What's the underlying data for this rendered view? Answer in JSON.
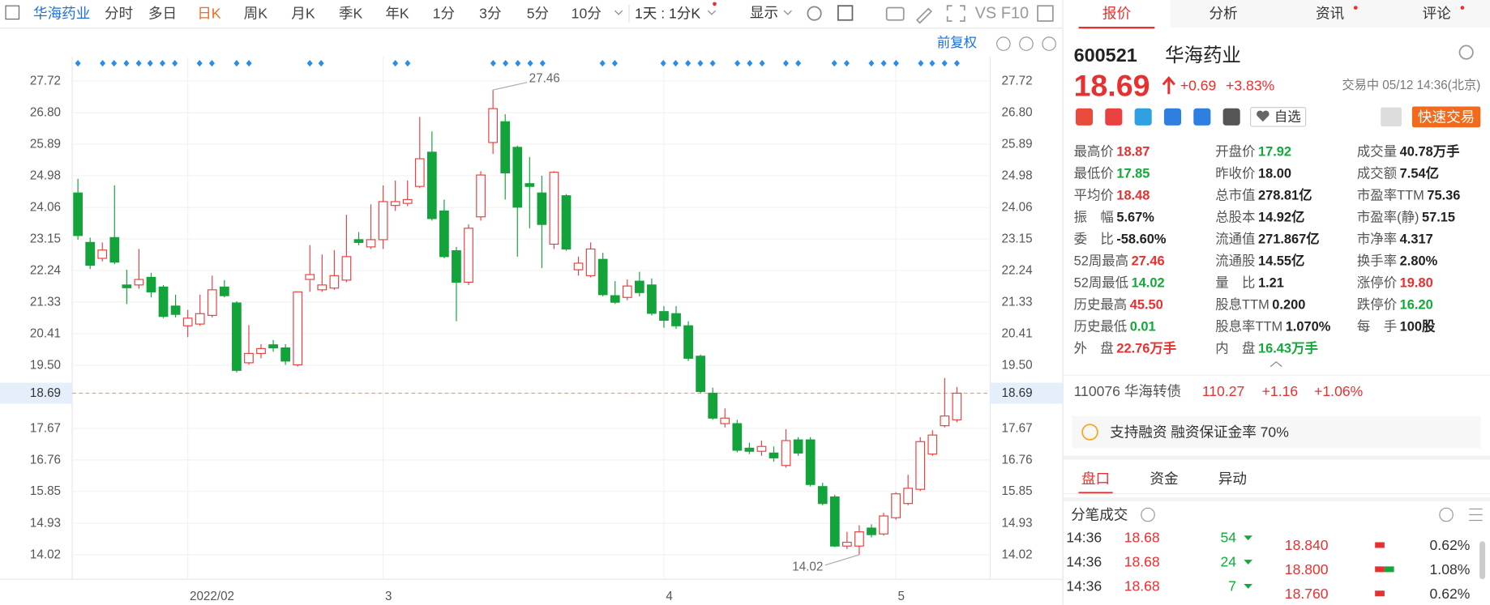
{
  "toolbar": {
    "symbol": "华海药业",
    "tabs": [
      "分时",
      "多日",
      "日K",
      "周K",
      "月K",
      "季K",
      "年K",
      "1分",
      "3分",
      "5分",
      "10分"
    ],
    "active_tab": 2,
    "period": "1天 : 1分K",
    "display": "显示",
    "compare": "VS F10"
  },
  "chart_data": {
    "type": "candlestick",
    "adjustment": "前复权",
    "categories": [
      null,
      null,
      null,
      null,
      null,
      null,
      null,
      null,
      null,
      "2022/02",
      null,
      null,
      null,
      null,
      null,
      null,
      null,
      null,
      null,
      null,
      null,
      null,
      null,
      null,
      null,
      "3",
      null,
      null,
      null,
      null,
      null,
      null,
      null,
      null,
      null,
      null,
      null,
      null,
      null,
      null,
      null,
      null,
      null,
      null,
      null,
      null,
      null,
      null,
      "4",
      null,
      null,
      null,
      null,
      null,
      null,
      null,
      null,
      null,
      null,
      null,
      null,
      null,
      null,
      null,
      null,
      null,
      null,
      "5",
      null,
      null,
      null,
      null,
      null
    ],
    "open": [
      24.48,
      23.05,
      22.59,
      23.19,
      21.82,
      21.82,
      22.04,
      21.76,
      21.21,
      20.64,
      20.69,
      20.94,
      21.76,
      21.3,
      19.57,
      19.84,
      20.09,
      20.0,
      19.51,
      21.98,
      21.68,
      21.73,
      21.96,
      23.13,
      22.92,
      23.13,
      24.12,
      24.18,
      24.67,
      25.66,
      23.96,
      22.81,
      21.9,
      23.79,
      25.94,
      26.54,
      25.8,
      24.75,
      24.48,
      23.0,
      24.4,
      22.26,
      22.09,
      22.56,
      21.51,
      21.46,
      21.93,
      21.82,
      21.05,
      20.99,
      20.64,
      19.76,
      18.69,
      17.81,
      17.81,
      17.1,
      17.01,
      16.96,
      16.6,
      17.34,
      17.34,
      15.99,
      15.69,
      14.27,
      14.27,
      14.79,
      14.62,
      15.09,
      15.5,
      15.91,
      16.93,
      17.75,
      17.92
    ],
    "high": [
      24.89,
      23.19,
      23.05,
      24.7,
      22.26,
      22.86,
      22.17,
      21.82,
      21.54,
      21.1,
      21.54,
      22.09,
      21.96,
      21.35,
      20.66,
      20.11,
      20.23,
      20.11,
      21.62,
      22.97,
      22.7,
      22.83,
      23.85,
      23.35,
      24.15,
      24.7,
      24.84,
      24.84,
      26.68,
      26.26,
      24.29,
      22.92,
      23.57,
      25.11,
      27.46,
      26.76,
      25.85,
      25.52,
      24.98,
      25.11,
      24.45,
      22.64,
      23.05,
      22.75,
      21.93,
      21.98,
      22.2,
      22.01,
      21.21,
      21.21,
      20.77,
      19.81,
      18.85,
      18.25,
      17.92,
      17.26,
      17.32,
      17.15,
      17.65,
      17.42,
      17.42,
      16.1,
      15.75,
      14.68,
      14.87,
      14.9,
      15.23,
      15.83,
      16.33,
      17.42,
      17.62,
      19.13,
      18.87
    ],
    "low": [
      23.13,
      22.28,
      22.5,
      22.42,
      21.27,
      21.71,
      21.46,
      20.86,
      20.88,
      20.31,
      20.64,
      20.88,
      21.46,
      19.29,
      19.51,
      19.7,
      19.89,
      19.51,
      19.46,
      21.62,
      21.62,
      21.68,
      21.9,
      22.97,
      22.86,
      22.86,
      23.96,
      24.1,
      24.62,
      23.68,
      22.59,
      20.77,
      21.82,
      23.68,
      25.61,
      24.29,
      22.64,
      23.46,
      22.31,
      22.86,
      22.81,
      22.09,
      22.04,
      21.49,
      21.27,
      21.38,
      21.49,
      20.94,
      20.58,
      20.55,
      19.62,
      18.69,
      17.92,
      17.7,
      16.98,
      16.93,
      16.88,
      16.71,
      16.54,
      16.88,
      15.99,
      15.45,
      14.24,
      14.18,
      14.02,
      14.52,
      14.57,
      15.03,
      15.45,
      15.86,
      16.88,
      17.7,
      17.85
    ],
    "close": [
      23.25,
      22.39,
      22.83,
      22.48,
      21.74,
      21.98,
      21.62,
      20.91,
      20.97,
      20.86,
      20.99,
      21.68,
      21.51,
      19.35,
      19.84,
      19.98,
      20.0,
      19.62,
      21.62,
      22.12,
      21.82,
      22.09,
      22.64,
      23.05,
      23.13,
      24.23,
      24.23,
      24.29,
      25.47,
      23.74,
      22.64,
      21.9,
      23.46,
      25.0,
      26.92,
      25.06,
      24.07,
      24.67,
      23.57,
      25.08,
      22.86,
      22.45,
      22.86,
      21.54,
      21.32,
      21.79,
      21.6,
      21.0,
      20.8,
      20.64,
      19.7,
      18.74,
      17.97,
      17.97,
      17.04,
      17.01,
      17.15,
      16.82,
      17.32,
      16.96,
      16.05,
      15.5,
      14.27,
      14.38,
      14.68,
      14.6,
      15.14,
      15.78,
      15.94,
      17.29,
      17.48,
      18.03,
      18.69
    ],
    "ylim": [
      13.31,
      28.41
    ],
    "yticks": [
      14.02,
      14.93,
      15.85,
      16.76,
      17.67,
      {
        "value": 19.5,
        "label": "19.50"
      },
      20.41,
      21.33,
      22.24,
      23.15,
      24.06,
      24.98,
      25.89,
      {
        "value": 26.8,
        "label": "26.80"
      },
      27.72
    ],
    "last_price": 18.69,
    "max_marker": 27.46,
    "min_marker": 14.02,
    "grid": true,
    "up_color": "#e8413f",
    "down_color": "#12a33b",
    "last_price_color": "#f5a05a"
  },
  "panel": {
    "tabs": [
      "报价",
      "分析",
      "资讯",
      "评论"
    ],
    "active_tab": 0,
    "code": "600521",
    "name": "华海药业",
    "price": 18.69,
    "change": "+0.69",
    "change_pct": "+3.83%",
    "status": "交易中 05/12 14:36(北京)",
    "watch": "自选",
    "trade": "快速交易",
    "stats": [
      [
        {
          "label": "最高价",
          "value": "18.87",
          "tone": "up"
        },
        {
          "label": "最低价",
          "value": "17.85",
          "tone": "down"
        },
        {
          "label": "平均价",
          "value": "18.48",
          "tone": "up"
        },
        {
          "label": "振　幅",
          "value": "5.67%",
          "tone": "flat"
        },
        {
          "label": "委　比",
          "value": "-58.60%",
          "tone": "flat"
        },
        {
          "label": "52周最高",
          "value": "27.46",
          "tone": "up"
        },
        {
          "label": "52周最低",
          "value": "14.02",
          "tone": "down"
        },
        {
          "label": "历史最高",
          "value": "45.50",
          "tone": "up"
        },
        {
          "label": "历史最低",
          "value": "0.01",
          "tone": "down"
        },
        {
          "label": "外　盘",
          "value": "22.76万手",
          "tone": "up"
        }
      ],
      [
        {
          "label": "开盘价",
          "value": "17.92",
          "tone": "down"
        },
        {
          "label": "昨收价",
          "value": "18.00",
          "tone": "flat"
        },
        {
          "label": "总市值",
          "value": "278.81亿",
          "tone": "flat"
        },
        {
          "label": "总股本",
          "value": "14.92亿",
          "tone": "flat"
        },
        {
          "label": "流通值",
          "value": "271.867亿",
          "tone": "flat"
        },
        {
          "label": "流通股",
          "value": "14.55亿",
          "tone": "flat"
        },
        {
          "label": "量　比",
          "value": "1.21",
          "tone": "flat"
        },
        {
          "label": "股息TTM",
          "value": "0.200",
          "tone": "flat"
        },
        {
          "label": "股息率TTM",
          "value": "1.070%",
          "tone": "flat"
        },
        {
          "label": "内　盘",
          "value": "16.43万手",
          "tone": "down"
        }
      ],
      [
        {
          "label": "成交量",
          "value": "40.78万手",
          "tone": "flat"
        },
        {
          "label": "成交额",
          "value": "7.54亿",
          "tone": "flat"
        },
        {
          "label": "市盈率TTM",
          "value": "75.36",
          "tone": "flat"
        },
        {
          "label": "市盈率(静)",
          "value": "57.15",
          "tone": "flat"
        },
        {
          "label": "市净率",
          "value": "4.317",
          "tone": "flat"
        },
        {
          "label": "换手率",
          "value": "2.80%",
          "tone": "flat"
        },
        {
          "label": "涨停价",
          "value": "19.80",
          "tone": "up"
        },
        {
          "label": "跌停价",
          "value": "16.20",
          "tone": "down"
        },
        {
          "label": "每　手",
          "value": "100股",
          "tone": "flat"
        }
      ]
    ],
    "bond": {
      "name": "110076 华海转债",
      "price": "110.27",
      "change": "+1.16",
      "change_pct": "+1.06%"
    },
    "margin": "支持融资 融资保证金率 70%",
    "sub_tabs": [
      "盘口",
      "资金",
      "异动"
    ],
    "sub_active": 0,
    "ticks_title": "分笔成交",
    "trades": [
      [
        "14:36",
        "18.68",
        "54"
      ],
      [
        "14:36",
        "18.68",
        "24"
      ],
      [
        "14:36",
        "18.68",
        "7"
      ]
    ],
    "book": [
      [
        "18.840",
        "0.62%"
      ],
      [
        "18.800",
        "1.08%"
      ],
      [
        "18.760",
        "0.62%"
      ]
    ]
  }
}
